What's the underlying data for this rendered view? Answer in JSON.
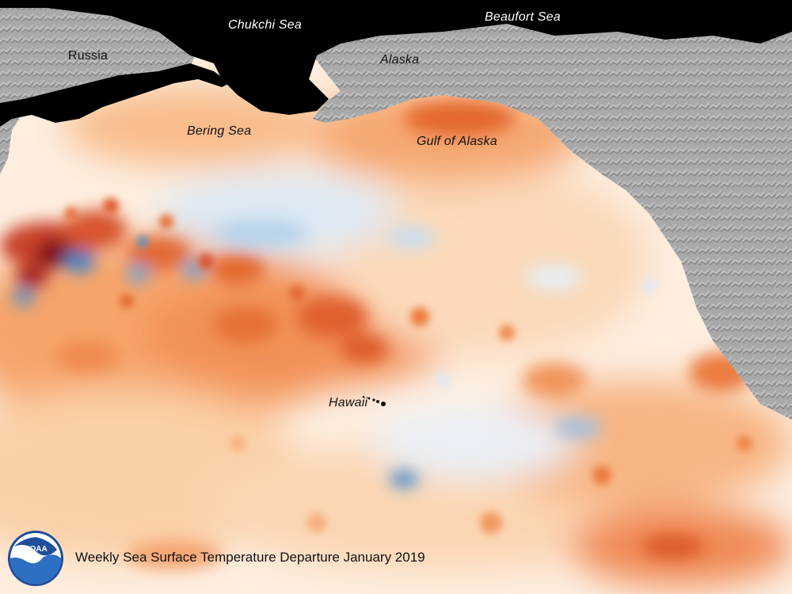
{
  "map": {
    "labels": {
      "chukchi_sea": "Chukchi Sea",
      "beaufort_sea": "Beaufort Sea",
      "russia": "Russia",
      "alaska": "Alaska",
      "bering_sea": "Bering Sea",
      "gulf_of_alaska": "Gulf of Alaska",
      "hawaii": "Hawaii"
    },
    "caption": "Weekly Sea Surface Temperature Departure January 2019",
    "logo": {
      "text": "NOAA",
      "icon": "noaa-logo-icon"
    },
    "colors": {
      "warm_strong": "#7a0c14",
      "warm": "#e4632b",
      "warm_light": "#f8c38f",
      "neutral": "#fdf3ea",
      "cool_light": "#d8e7f3",
      "cool": "#3b82c4",
      "land": "#a8a8a8",
      "ice": "#000000"
    }
  }
}
